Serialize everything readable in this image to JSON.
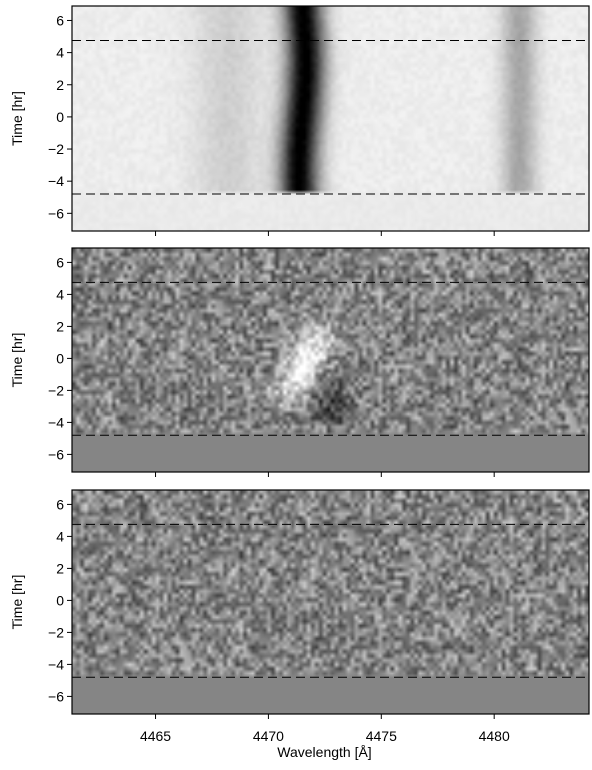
{
  "chart_data": [
    {
      "type": "heatmap",
      "panel": "top",
      "title": "",
      "xlabel": "",
      "ylabel": "Time [hr]",
      "xlim": [
        4461.3,
        4484.2
      ],
      "ylim": [
        -7.1,
        6.9
      ],
      "yticks": [
        -6,
        -4,
        -2,
        0,
        2,
        4,
        6
      ],
      "ytick_labels": [
        "−6",
        "−4",
        "−2",
        "0",
        "2",
        "4",
        "6"
      ],
      "dashed_lines_y": [
        4.75,
        -4.8
      ],
      "colormap": "grayscale",
      "features": [
        {
          "kind": "absorption",
          "center": 4471.5,
          "width": 1.1,
          "depth": 0.95,
          "y_range": [
            -4.8,
            6.9
          ]
        },
        {
          "kind": "absorption",
          "center": 4481.1,
          "width": 1.0,
          "depth": 0.28,
          "y_range": [
            -4.8,
            6.9
          ]
        },
        {
          "kind": "absorption",
          "center": 4468.2,
          "width": 2.0,
          "depth": 0.12,
          "y_range": [
            -4.8,
            6.9
          ]
        }
      ]
    },
    {
      "type": "heatmap",
      "panel": "middle",
      "title": "",
      "xlabel": "",
      "ylabel": "Time  [hr]",
      "xlim": [
        4461.3,
        4484.2
      ],
      "ylim": [
        -7.1,
        6.9
      ],
      "yticks": [
        -6,
        -4,
        -2,
        0,
        2,
        4,
        6
      ],
      "ytick_labels": [
        "−6",
        "−4",
        "−2",
        "0",
        "2",
        "4",
        "6"
      ],
      "dashed_lines_y": [
        4.75,
        -4.8
      ],
      "colormap": "grayscale",
      "features": [
        {
          "kind": "emission",
          "center_start": 4470.6,
          "center_end": 4472.6,
          "y_range": [
            -3.3,
            2.6
          ],
          "amplitude": 0.55
        },
        {
          "kind": "absorption",
          "center": 4472.8,
          "y_center": -2.6,
          "width": 0.5,
          "amplitude": 0.35
        }
      ]
    },
    {
      "type": "heatmap",
      "panel": "bottom",
      "title": "",
      "xlabel": "Wavelength [Å]",
      "ylabel": "Time  [hr]",
      "xlim": [
        4461.3,
        4484.2
      ],
      "ylim": [
        -7.1,
        6.9
      ],
      "xticks": [
        4465,
        4470,
        4475,
        4480
      ],
      "xtick_labels": [
        "4465",
        "4470",
        "4475",
        "4480"
      ],
      "yticks": [
        -6,
        -4,
        -2,
        0,
        2,
        4,
        6
      ],
      "ytick_labels": [
        "−6",
        "−4",
        "−2",
        "0",
        "2",
        "4",
        "6"
      ],
      "dashed_lines_y": [
        4.75,
        -4.8
      ],
      "colormap": "grayscale",
      "features": []
    }
  ]
}
